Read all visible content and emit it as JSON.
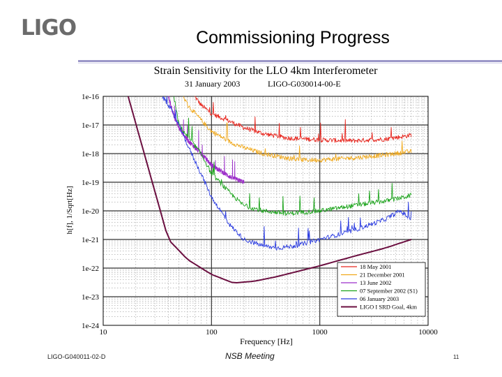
{
  "header": {
    "logo_text": "LIGO",
    "slide_title": "Commissioning Progress"
  },
  "footer": {
    "doc_number": "LIGO-G040011-02-D",
    "meeting": "NSB Meeting",
    "page_number": "11"
  },
  "chart_data": {
    "type": "line",
    "title": "Strain Sensitivity for the LLO 4km Interferometer",
    "subtitle_date": "31 January 2003",
    "subtitle_doc": "LIGO-G030014-00-E",
    "xlabel": "Frequency [Hz]",
    "ylabel": "h[f], 1/Sqrt[Hz]",
    "x_scale": "log",
    "y_scale": "log",
    "xlim": [
      10,
      10000
    ],
    "ylim": [
      1e-24,
      1e-16
    ],
    "x_ticks": [
      10,
      100,
      1000,
      10000
    ],
    "x_tick_labels": [
      "10",
      "100",
      "1000",
      "10000"
    ],
    "y_ticks": [
      1e-16,
      1e-17,
      1e-18,
      1e-19,
      1e-20,
      1e-21,
      1e-22,
      1e-23,
      1e-24
    ],
    "y_tick_labels": [
      "1e-16",
      "1e-17",
      "1e-18",
      "1e-19",
      "1e-20",
      "1e-21",
      "1e-22",
      "1e-23",
      "1e-24"
    ],
    "grid": true,
    "legend_position": "bottom-right",
    "series": [
      {
        "name": "18 May 2001",
        "color": "#e8261e",
        "x": [
          70,
          80,
          100,
          150,
          200,
          300,
          500,
          800,
          1000,
          2000,
          4000,
          6000,
          7000
        ],
        "y": [
          1e-16,
          5e-17,
          2.5e-17,
          1.3e-17,
          8e-18,
          5e-18,
          3.5e-18,
          3.2e-18,
          3e-18,
          2.8e-18,
          3.2e-18,
          4e-18,
          4.5e-18
        ]
      },
      {
        "name": "21 December 2001",
        "color": "#f0a81a",
        "x": [
          55,
          60,
          80,
          100,
          150,
          200,
          300,
          500,
          700,
          1000,
          2000,
          4000,
          6000,
          7000
        ],
        "y": [
          1e-16,
          5e-17,
          1.5e-17,
          6e-18,
          2.5e-18,
          1.6e-18,
          1e-18,
          7e-19,
          6e-19,
          6e-19,
          7e-19,
          9e-19,
          1.1e-18,
          1.2e-18
        ]
      },
      {
        "name": "13 June 2002",
        "color": "#9c2fc9",
        "x": [
          40,
          45,
          50,
          60,
          80,
          100,
          150,
          200
        ],
        "y": [
          1e-16,
          2e-17,
          8e-18,
          3e-18,
          1e-18,
          4e-19,
          1.5e-19,
          1e-19
        ]
      },
      {
        "name": "07 September 2002 (S1)",
        "color": "#1aa31a",
        "x": [
          45,
          50,
          60,
          80,
          100,
          150,
          200,
          300,
          500,
          1000,
          2000,
          4000,
          6000,
          7000
        ],
        "y": [
          1e-16,
          1e-17,
          4e-18,
          1e-18,
          2e-19,
          4e-20,
          1.5e-20,
          1e-20,
          8e-21,
          1e-20,
          1.5e-20,
          2.2e-20,
          3e-20,
          3.5e-20
        ]
      },
      {
        "name": "06 January 2003",
        "color": "#2a3be0",
        "x": [
          35,
          40,
          50,
          60,
          80,
          100,
          150,
          200,
          300,
          400,
          600,
          1000,
          2000,
          4000,
          5500,
          7000
        ],
        "y": [
          1e-16,
          5e-17,
          1e-17,
          2e-18,
          2e-19,
          3e-20,
          3e-21,
          1e-21,
          6e-22,
          5e-22,
          6e-22,
          1e-21,
          2e-21,
          5e-21,
          1e-20,
          5e-21
        ]
      },
      {
        "name": "LIGO I SRD Goal, 4km",
        "color": "#6b0f40",
        "x": [
          17,
          40,
          60,
          100,
          160,
          250,
          400,
          1000,
          2000,
          4000,
          7000
        ],
        "y": [
          1e-16,
          1e-21,
          2e-22,
          6e-23,
          3e-23,
          3.5e-23,
          5e-23,
          1.2e-22,
          2.5e-22,
          5e-22,
          1e-21
        ]
      }
    ]
  }
}
